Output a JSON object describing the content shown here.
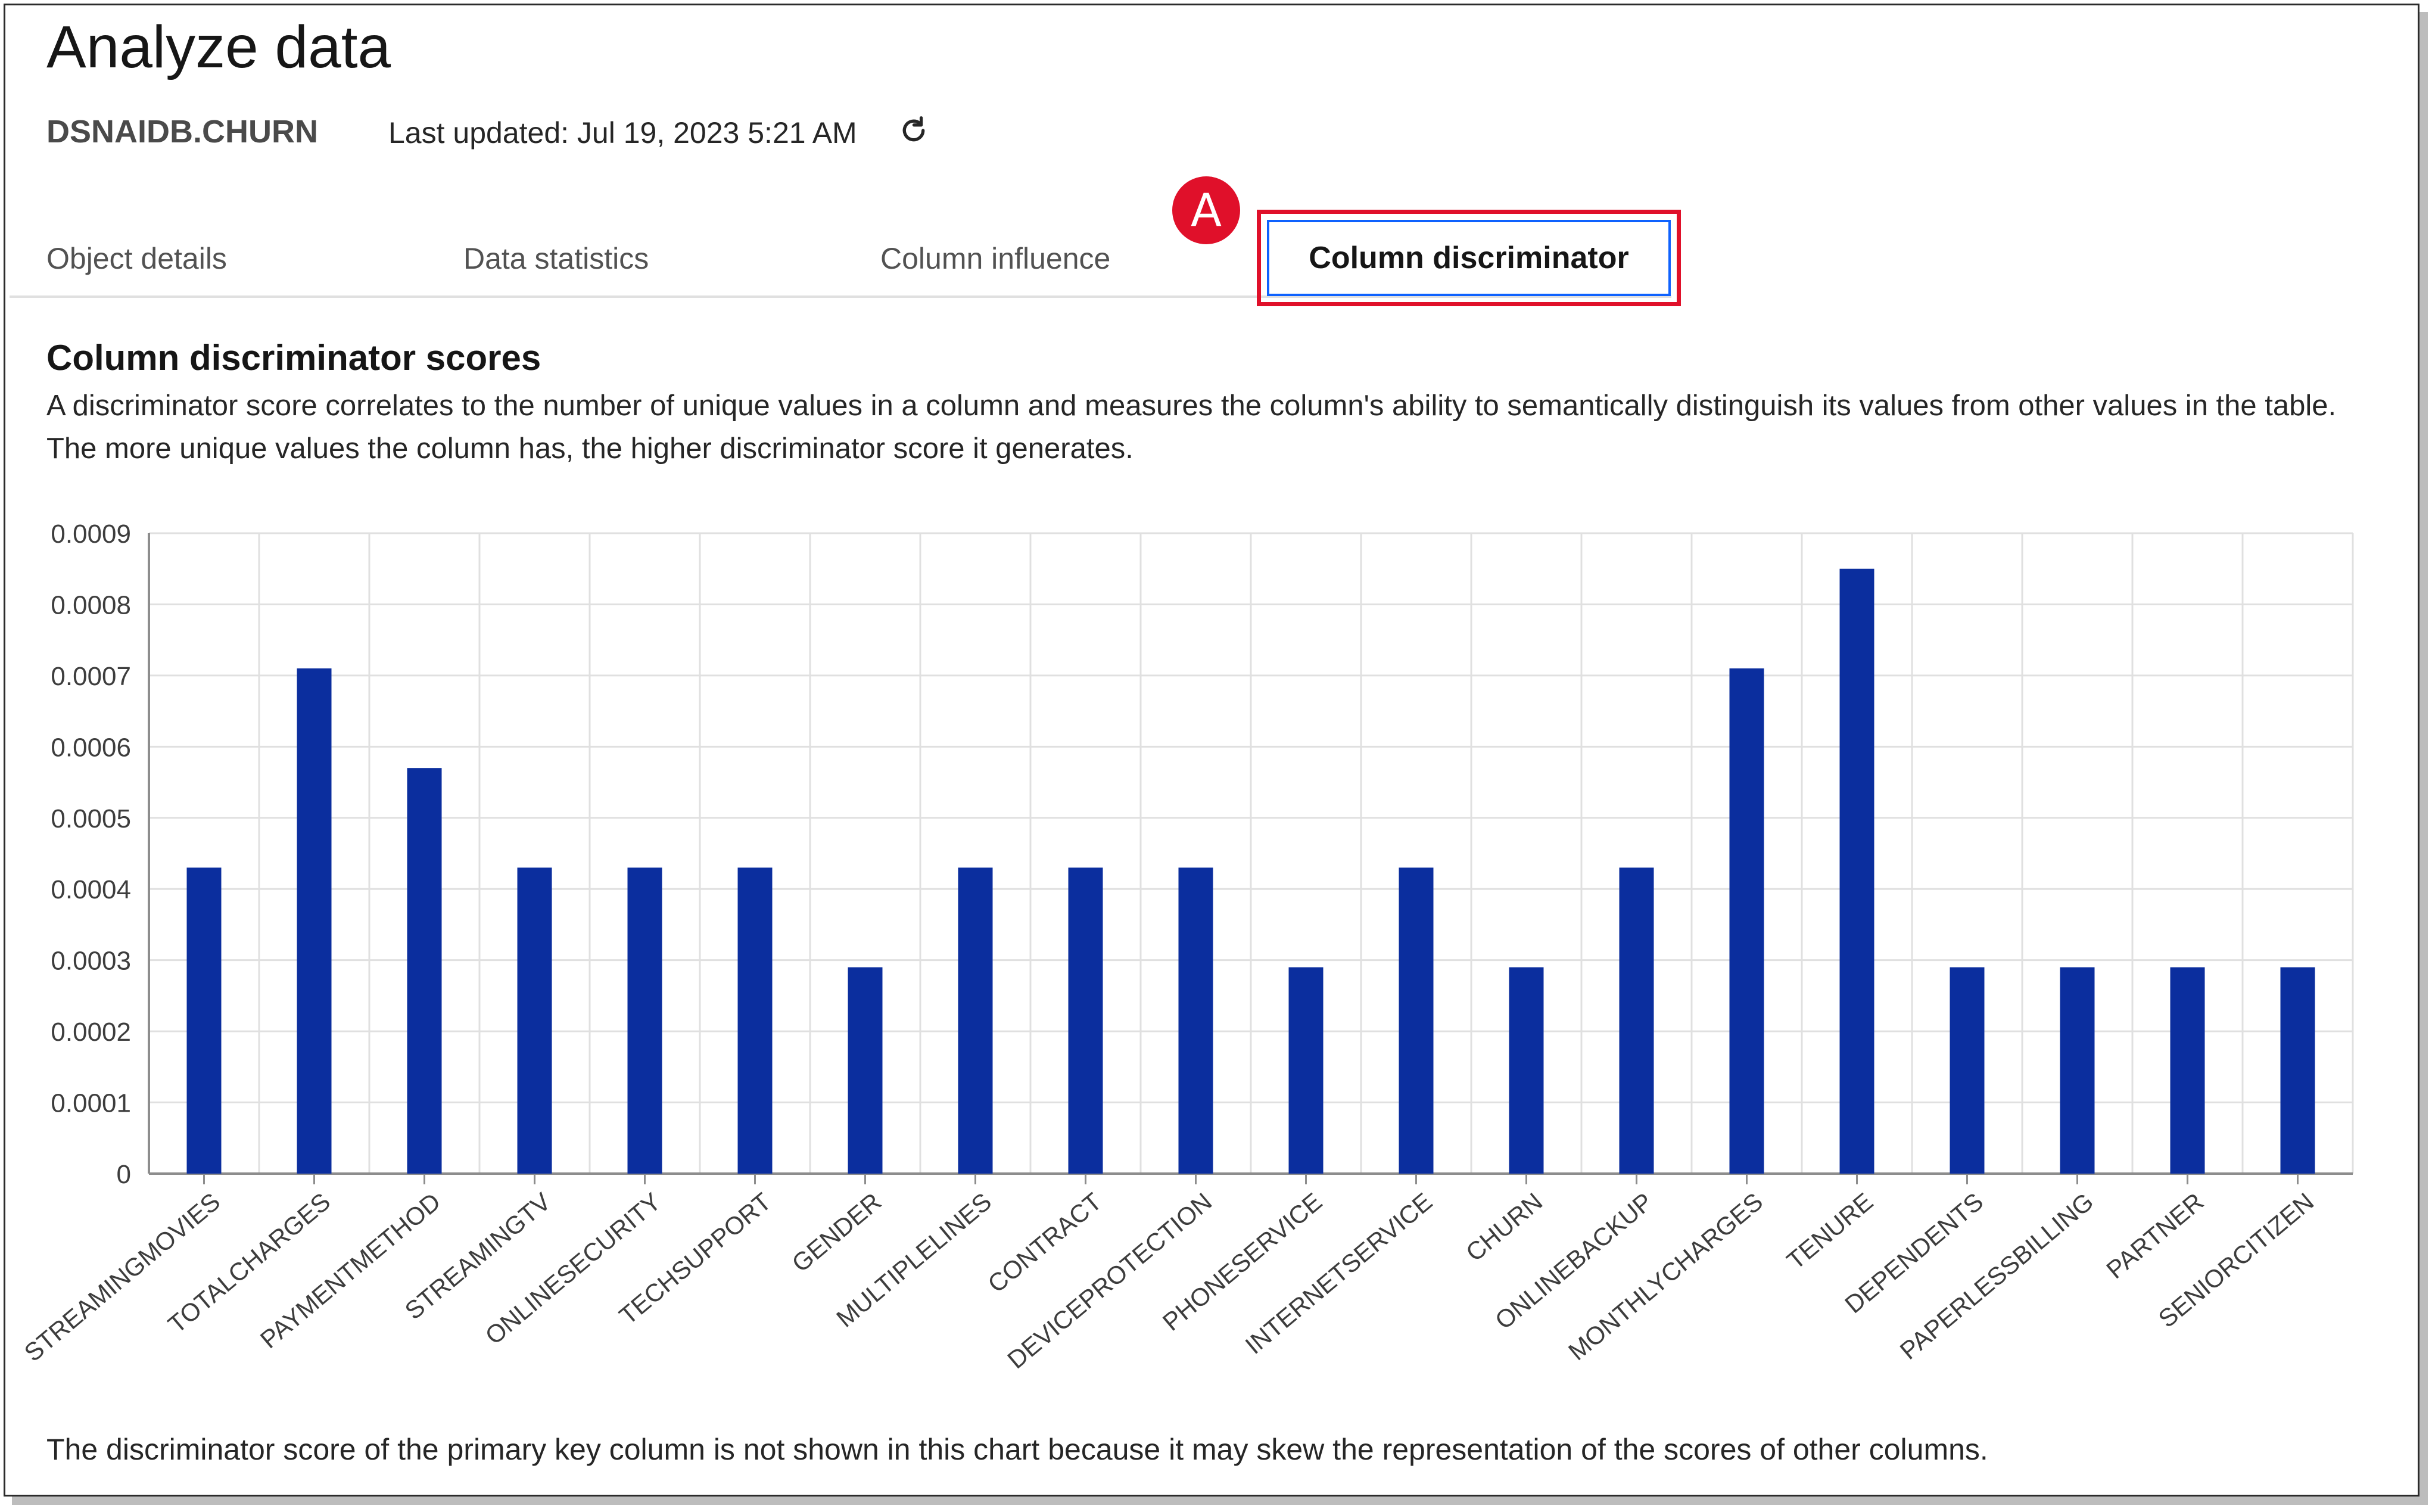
{
  "header": {
    "title": "Analyze data",
    "table_name": "DSNAIDB.CHURN",
    "last_updated": "Last updated: Jul 19, 2023 5:21 AM",
    "refresh_icon": "refresh-icon"
  },
  "tabs": [
    {
      "label": "Object details"
    },
    {
      "label": "Data statistics"
    },
    {
      "label": "Column influence"
    },
    {
      "label": "Column discriminator",
      "selected": true
    }
  ],
  "callout": {
    "label": "A",
    "color": "#e0102a"
  },
  "section": {
    "title": "Column discriminator scores",
    "description": "A discriminator score correlates to the number of unique values in a column and measures the column's ability to semantically distinguish its values from other values in the table. The more unique values the column has, the higher discriminator score it generates."
  },
  "footnote": "The discriminator score of the primary key column is not shown in this chart because it may skew the representation of the scores of other columns.",
  "colors": {
    "bar": "#0b2e9e",
    "grid": "#e0e0e0",
    "axis": "#8d8d8d",
    "highlight": "#e0102a",
    "tab_focus": "#0f62fe"
  },
  "chart_data": {
    "type": "bar",
    "categories": [
      "STREAMINGMOVIES",
      "TOTALCHARGES",
      "PAYMENTMETHOD",
      "STREAMINGTV",
      "ONLINESECURITY",
      "TECHSUPPORT",
      "GENDER",
      "MULTIPLELINES",
      "CONTRACT",
      "DEVICEPROTECTION",
      "PHONESERVICE",
      "INTERNETSERVICE",
      "CHURN",
      "ONLINEBACKUP",
      "MONTHLYCHARGES",
      "TENURE",
      "DEPENDENTS",
      "PAPERLESSBILLING",
      "PARTNER",
      "SENIORCITIZEN"
    ],
    "values": [
      0.00043,
      0.00071,
      0.00057,
      0.00043,
      0.00043,
      0.00043,
      0.00029,
      0.00043,
      0.00043,
      0.00043,
      0.00029,
      0.00043,
      0.00029,
      0.00043,
      0.00071,
      0.00085,
      0.00029,
      0.00029,
      0.00029,
      0.00029
    ],
    "yticks": [
      "0",
      "0.0001",
      "0.0002",
      "0.0003",
      "0.0004",
      "0.0005",
      "0.0006",
      "0.0007",
      "0.0008",
      "0.0009"
    ],
    "ylim": [
      0,
      0.0009
    ],
    "grid": true
  }
}
